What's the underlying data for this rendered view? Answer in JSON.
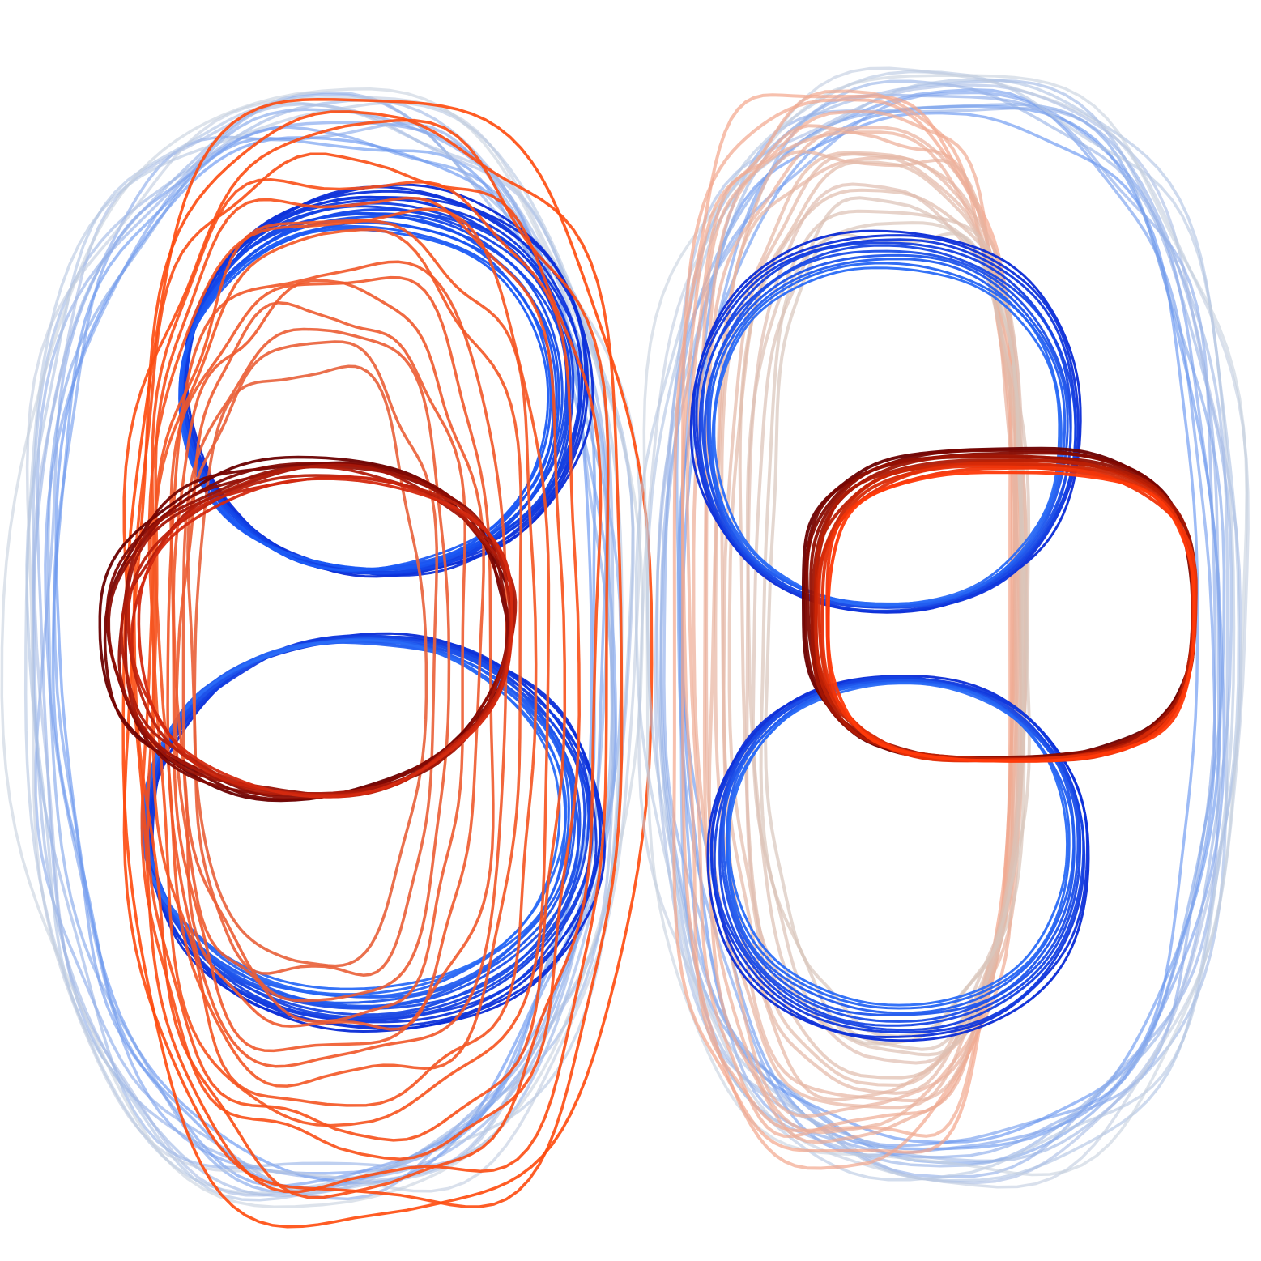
{
  "figure": {
    "background": "#ffffff",
    "panels": [
      {
        "name": "left-panel",
        "families": [
          {
            "name": "outer-blue-shell",
            "color_start": "#5b8df0",
            "color_end": "#c7d0de",
            "count": 14
          },
          {
            "name": "blue-upper-ring",
            "color_start": "#0a2bd6",
            "color_end": "#1c5cf5",
            "count": 16
          },
          {
            "name": "blue-lower-ring",
            "color_start": "#0a2bd6",
            "color_end": "#2a6cf7",
            "count": 16
          },
          {
            "name": "orange-contours",
            "color_start": "#ff4a0c",
            "color_end": "#e8603a",
            "count": 16
          },
          {
            "name": "dark-red-core",
            "color_start": "#6a0000",
            "color_end": "#d42a10",
            "count": 10
          }
        ]
      },
      {
        "name": "right-panel",
        "families": [
          {
            "name": "outer-blue-shell",
            "color_start": "#5b8df0",
            "color_end": "#c7d0de",
            "count": 14
          },
          {
            "name": "salmon-contours",
            "color_start": "#f4a58a",
            "color_end": "#d8c6bc",
            "count": 18
          },
          {
            "name": "blue-figure-eight",
            "color_start": "#0a2bd6",
            "color_end": "#2a6cf7",
            "count": 10
          },
          {
            "name": "dark-red-core",
            "color_start": "#6a0000",
            "color_end": "#ff3a0a",
            "count": 12
          }
        ]
      }
    ]
  }
}
